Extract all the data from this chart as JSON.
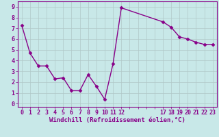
{
  "x": [
    0,
    1,
    2,
    3,
    4,
    5,
    6,
    7,
    8,
    9,
    10,
    11,
    12,
    17,
    18,
    19,
    20,
    21,
    22,
    23
  ],
  "y": [
    7.3,
    4.7,
    3.5,
    3.5,
    2.3,
    2.4,
    1.2,
    1.2,
    2.7,
    1.6,
    0.4,
    3.7,
    8.9,
    7.6,
    7.1,
    6.2,
    6.0,
    5.7,
    5.5,
    5.5
  ],
  "line_color": "#880088",
  "marker": "D",
  "marker_size": 2.5,
  "bg_color": "#c8e8e8",
  "grid_color": "#b0c8c8",
  "xlabel": "Windchill (Refroidissement éolien,°C)",
  "xlabel_color": "#880088",
  "xlabel_fontsize": 6.5,
  "ytick_labels": [
    "0",
    "1",
    "2",
    "3",
    "4",
    "5",
    "6",
    "7",
    "8",
    "9"
  ],
  "ylim": [
    -0.3,
    9.5
  ],
  "xlim": [
    -0.5,
    23.5
  ],
  "tick_color": "#880088",
  "tick_fontsize": 6,
  "linewidth": 1.0,
  "spine_color": "#880088"
}
